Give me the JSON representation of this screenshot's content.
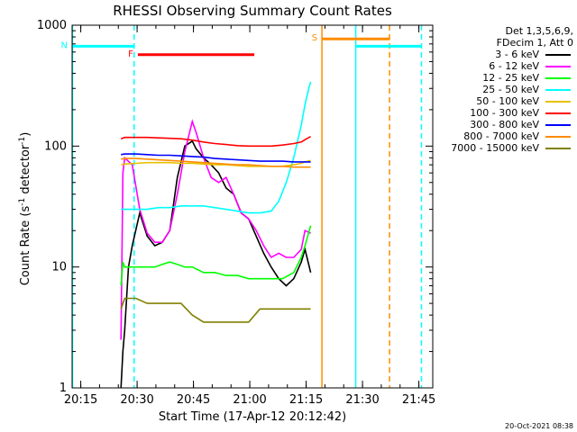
{
  "chart_data": {
    "type": "line",
    "title": "RHESSI Observing Summary Count Rates",
    "xlabel": "Start Time (17-Apr-12 20:12:42)",
    "ylabel_main": "Count Rate (s",
    "ylabel_sup1": "-1",
    "ylabel_mid": " detector",
    "ylabel_sup2": "-1",
    "ylabel_end": ")",
    "x_unit": "minutes since 20:12:42",
    "xlim": [
      0,
      96
    ],
    "ylim": [
      1,
      1000
    ],
    "y_scale": "log",
    "x_ticks": [
      {
        "label": "20:15",
        "x": 2.3
      },
      {
        "label": "20:30",
        "x": 17.3
      },
      {
        "label": "20:45",
        "x": 32.3
      },
      {
        "label": "21:00",
        "x": 47.3
      },
      {
        "label": "21:15",
        "x": 62.3
      },
      {
        "label": "21:30",
        "x": 77.3
      },
      {
        "label": "21:45",
        "x": 92.3
      }
    ],
    "y_ticks": [
      {
        "label": "1",
        "y": 1
      },
      {
        "label": "10",
        "y": 10
      },
      {
        "label": "100",
        "y": 100
      },
      {
        "label": "1000",
        "y": 1000
      }
    ],
    "legend_header": [
      "Det 1,3,5,6,9,",
      "FDecim 1, Att 0"
    ],
    "series": [
      {
        "name": "3 - 6 keV",
        "color": "#000000",
        "x": [
          13,
          13.5,
          14,
          15,
          16,
          18,
          20,
          22,
          24,
          26,
          28,
          30,
          32,
          33,
          35,
          37,
          39,
          41,
          43,
          45,
          47,
          49,
          51,
          53,
          55,
          57,
          59,
          61,
          62,
          63.5
        ],
        "y": [
          1,
          2,
          3,
          10,
          15,
          28,
          18,
          15,
          16,
          20,
          55,
          100,
          110,
          95,
          80,
          70,
          60,
          45,
          40,
          28,
          25,
          18,
          13,
          10,
          8,
          7,
          8,
          11,
          14,
          9
        ]
      },
      {
        "name": "6 - 12 keV",
        "color": "#ff00ff",
        "x": [
          13,
          13.5,
          14,
          16,
          18,
          20,
          22,
          24,
          26,
          28,
          30,
          32,
          33,
          35,
          37,
          39,
          41,
          43,
          45,
          47,
          49,
          51,
          53,
          55,
          57,
          59,
          61,
          62,
          63.5
        ],
        "y": [
          2.5,
          60,
          80,
          70,
          30,
          19,
          16,
          16,
          20,
          40,
          90,
          160,
          130,
          80,
          55,
          50,
          55,
          40,
          28,
          25,
          20,
          15,
          12,
          13,
          12,
          12,
          14,
          20,
          19
        ]
      },
      {
        "name": "12 - 25 keV",
        "color": "#00ff00",
        "x": [
          13,
          13.5,
          14,
          16,
          18,
          20,
          22,
          24,
          26,
          28,
          30,
          32,
          35,
          38,
          41,
          44,
          47,
          50,
          53,
          56,
          59,
          61,
          62,
          63.5
        ],
        "y": [
          7,
          11,
          10,
          10,
          10,
          10,
          10,
          10.5,
          11,
          10.5,
          10,
          10,
          9,
          9,
          8.5,
          8.5,
          8,
          8,
          8,
          8,
          9,
          12,
          15,
          22
        ]
      },
      {
        "name": "25 - 50 keV",
        "color": "#00ffff",
        "x": [
          13,
          14,
          17,
          20,
          23,
          26,
          29,
          32,
          35,
          38,
          41,
          44,
          47,
          50,
          53,
          55,
          57,
          59,
          61,
          62,
          63,
          63.5
        ],
        "y": [
          30,
          30,
          30,
          30,
          31,
          31,
          32,
          32,
          32,
          31,
          30,
          29,
          28,
          28,
          29,
          35,
          50,
          80,
          150,
          220,
          300,
          340
        ]
      },
      {
        "name": "50 - 100 keV",
        "color": "#e8c000",
        "x": [
          13,
          14,
          17,
          20,
          23,
          26,
          29,
          32,
          35,
          38,
          41,
          44,
          47,
          50,
          53,
          56,
          59,
          61,
          62,
          63.5
        ],
        "y": [
          70,
          71,
          72,
          73,
          73,
          73,
          72,
          72,
          71,
          70,
          70,
          69,
          68,
          68,
          68,
          68,
          70,
          72,
          74,
          76
        ]
      },
      {
        "name": "100 - 300 keV",
        "color": "#ff0000",
        "x": [
          13,
          14,
          17,
          20,
          23,
          26,
          29,
          32,
          35,
          38,
          41,
          44,
          47,
          50,
          53,
          56,
          59,
          61,
          62,
          63.5
        ],
        "y": [
          115,
          118,
          118,
          118,
          117,
          116,
          115,
          112,
          108,
          105,
          103,
          101,
          100,
          100,
          100,
          102,
          105,
          108,
          113,
          120
        ]
      },
      {
        "name": "300 - 800 keV",
        "color": "#0000ff",
        "x": [
          13,
          14,
          17,
          20,
          23,
          26,
          29,
          32,
          35,
          38,
          41,
          44,
          47,
          50,
          53,
          56,
          59,
          61,
          62,
          63.5
        ],
        "y": [
          85,
          86,
          86,
          85,
          84,
          84,
          83,
          82,
          81,
          79,
          78,
          77,
          76,
          75,
          75,
          75,
          74,
          74,
          74,
          74
        ]
      },
      {
        "name": "800 - 7000 keV",
        "color": "#ff8c00",
        "x": [
          13,
          14,
          17,
          20,
          23,
          26,
          29,
          32,
          35,
          38,
          41,
          44,
          47,
          50,
          53,
          56,
          59,
          61,
          62,
          63.5
        ],
        "y": [
          78,
          79,
          79,
          78,
          77,
          76,
          75,
          74,
          73,
          72,
          71,
          70,
          70,
          69,
          68,
          68,
          67,
          67,
          67,
          67
        ]
      },
      {
        "name": "7000 - 15000 keV",
        "color": "#808000",
        "x": [
          13,
          14,
          17,
          20,
          23,
          26,
          29,
          32,
          35,
          38,
          41,
          44,
          47,
          50,
          53,
          56,
          59,
          61,
          62,
          63.5
        ],
        "y": [
          4.5,
          5.5,
          5.5,
          5,
          5,
          5,
          5,
          4,
          3.5,
          3.5,
          3.5,
          3.5,
          3.5,
          4.5,
          4.5,
          4.5,
          4.5,
          4.5,
          4.5,
          4.5
        ]
      }
    ],
    "flag_segments": [
      {
        "label": "F",
        "color": "#ff0000",
        "x0": 17.5,
        "x1": 48.5,
        "y": 570
      },
      {
        "label": "S",
        "color": "#ff8c00",
        "x0": 66.5,
        "x1": 84.5,
        "y": 770
      },
      {
        "label": "N",
        "color": "#00ffff",
        "x0": 0,
        "x1": 16.5,
        "y": 670
      },
      {
        "label": "",
        "color": "#00ffff",
        "x0": 75.5,
        "x1": 93.0,
        "y": 670
      }
    ],
    "vertical_lines": [
      {
        "x": 0.1,
        "color": "#00ffff",
        "style": "solid"
      },
      {
        "x": 16.5,
        "color": "#00ffff",
        "style": "dashed"
      },
      {
        "x": 66.5,
        "color": "#ff8c00",
        "style": "solid"
      },
      {
        "x": 75.5,
        "color": "#00ffff",
        "style": "solid"
      },
      {
        "x": 84.5,
        "color": "#ff8c00",
        "style": "dashed"
      },
      {
        "x": 93.0,
        "color": "#00ffff",
        "style": "dashed"
      }
    ],
    "legend_placement": "right",
    "grid": false
  },
  "footnote": "20-Oct-2021 08:38"
}
